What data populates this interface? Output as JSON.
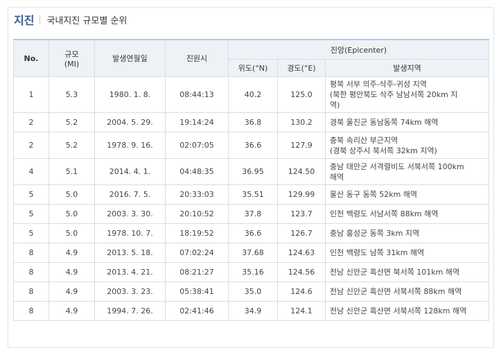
{
  "header": {
    "title": "지진",
    "subtitle": "국내지진 규모별 순위"
  },
  "table": {
    "columns": {
      "no": "No.",
      "magnitude_line1": "규모",
      "magnitude_line2": "(MI)",
      "date": "발생연월일",
      "time": "진원시",
      "epicenter": "진앙(Epicenter)",
      "lat": "위도(°N)",
      "lon": "경도(°E)",
      "region": "발생지역"
    },
    "rows": [
      {
        "no": "1",
        "mag": "5.3",
        "date": "1980. 1. 8.",
        "time": "08:44:13",
        "lat": "40.2",
        "lon": "125.0",
        "region": [
          "평북 서부 의주-삭주-귀성 지역",
          "(북한 평안북도 삭주 남남서쪽 20km 지",
          "역)"
        ]
      },
      {
        "no": "2",
        "mag": "5.2",
        "date": "2004. 5. 29.",
        "time": "19:14:24",
        "lat": "36.8",
        "lon": "130.2",
        "region": [
          "경북 울진군 동남동쪽 74km 해역"
        ]
      },
      {
        "no": "2",
        "mag": "5.2",
        "date": "1978. 9. 16.",
        "time": "02:07:05",
        "lat": "36.6",
        "lon": "127.9",
        "region": [
          "충북 속리산 부근지역",
          "(경북 상주시 북서쪽 32km 지역)"
        ]
      },
      {
        "no": "4",
        "mag": "5.1",
        "date": "2014. 4. 1.",
        "time": "04:48:35",
        "lat": "36.95",
        "lon": "124.50",
        "region": [
          "충남 태안군 서격렬비도 서북서쪽 100km",
          "해역"
        ]
      },
      {
        "no": "5",
        "mag": "5.0",
        "date": "2016. 7. 5.",
        "time": "20:33:03",
        "lat": "35.51",
        "lon": "129.99",
        "region": [
          "울산 동구 동쪽 52km 해역"
        ]
      },
      {
        "no": "5",
        "mag": "5.0",
        "date": "2003. 3. 30.",
        "time": "20:10:52",
        "lat": "37.8",
        "lon": "123.7",
        "region": [
          "인천 백령도 서남서쪽 88km 해역"
        ]
      },
      {
        "no": "5",
        "mag": "5.0",
        "date": "1978. 10. 7.",
        "time": "18:19:52",
        "lat": "36.6",
        "lon": "126.7",
        "region": [
          "충남 홍성군 동쪽 3km 지역"
        ]
      },
      {
        "no": "8",
        "mag": "4.9",
        "date": "2013. 5. 18.",
        "time": "07:02:24",
        "lat": "37.68",
        "lon": "124.63",
        "region": [
          "인천 백령도 남쪽 31km 해역"
        ]
      },
      {
        "no": "8",
        "mag": "4.9",
        "date": "2013. 4. 21.",
        "time": "08:21:27",
        "lat": "35.16",
        "lon": "124.56",
        "region": [
          "전남 신안군 흑산면 북서쪽 101km 해역"
        ]
      },
      {
        "no": "8",
        "mag": "4.9",
        "date": "2003. 3. 23.",
        "time": "05:38:41",
        "lat": "35.0",
        "lon": "124.6",
        "region": [
          "전남 신안군 흑산면 서북서쪽 88km 해역"
        ]
      },
      {
        "no": "8",
        "mag": "4.9",
        "date": "1994. 7. 26.",
        "time": "02:41:46",
        "lat": "34.9",
        "lon": "124.1",
        "region": [
          "전남 신안군 흑산면 서북서쪽 128km 해역"
        ]
      }
    ]
  }
}
